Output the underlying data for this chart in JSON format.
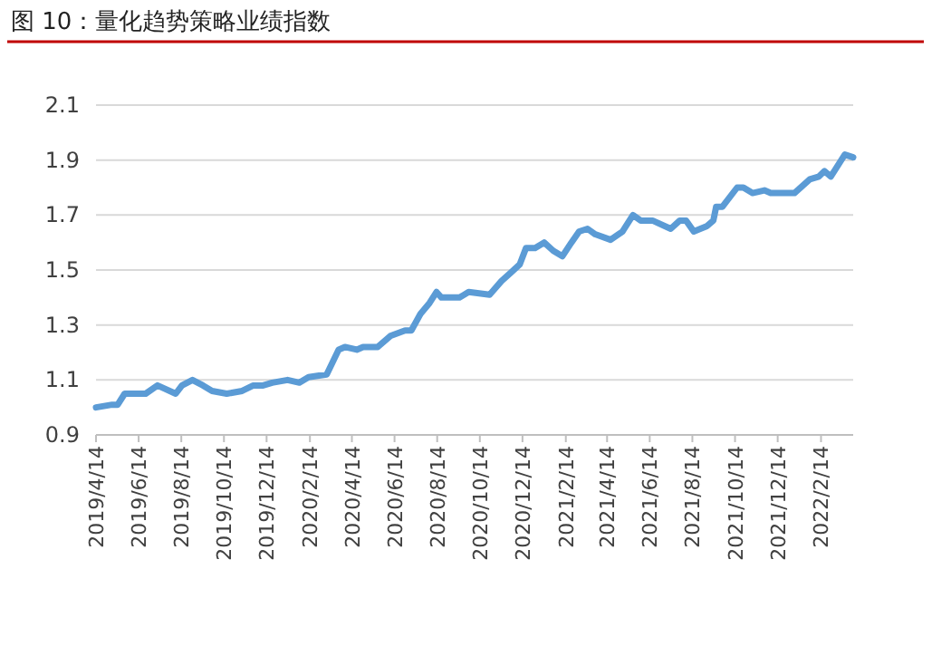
{
  "chart_data": {
    "type": "line",
    "title": "图 10：量化趋势策略业绩指数",
    "x": [
      "2019-04-14",
      "2019-05-07",
      "2019-05-15",
      "2019-05-25",
      "2019-06-24",
      "2019-07-11",
      "2019-08-06",
      "2019-08-15",
      "2019-08-30",
      "2019-09-14",
      "2019-09-27",
      "2019-10-18",
      "2019-11-09",
      "2019-11-25",
      "2019-12-09",
      "2019-12-22",
      "2020-01-13",
      "2020-01-30",
      "2020-02-12",
      "2020-03-09",
      "2020-03-26",
      "2020-04-04",
      "2020-04-21",
      "2020-04-30",
      "2020-05-21",
      "2020-06-08",
      "2020-06-29",
      "2020-07-08",
      "2020-07-21",
      "2020-08-03",
      "2020-08-13",
      "2020-08-20",
      "2020-09-15",
      "2020-09-28",
      "2020-10-28",
      "2020-11-14",
      "2020-11-27",
      "2020-12-10",
      "2020-12-19",
      "2021-01-01",
      "2021-01-14",
      "2021-01-27",
      "2021-02-09",
      "2021-02-22",
      "2021-03-05",
      "2021-03-17",
      "2021-03-28",
      "2021-04-19",
      "2021-05-06",
      "2021-05-21",
      "2021-06-01",
      "2021-06-18",
      "2021-07-14",
      "2021-07-27",
      "2021-08-05",
      "2021-08-16",
      "2021-09-04",
      "2021-09-13",
      "2021-09-17",
      "2021-09-26",
      "2021-10-17",
      "2021-10-26",
      "2021-11-08",
      "2021-11-25",
      "2021-12-04",
      "2021-12-21",
      "2022-01-07",
      "2022-01-29",
      "2022-02-11",
      "2022-02-19",
      "2022-02-28",
      "2022-03-20",
      "2022-04-01"
    ],
    "series": [
      {
        "color": "#5b9bd5",
        "values": [
          1.0,
          1.01,
          1.01,
          1.05,
          1.05,
          1.08,
          1.05,
          1.08,
          1.1,
          1.08,
          1.06,
          1.05,
          1.06,
          1.08,
          1.08,
          1.09,
          1.1,
          1.09,
          1.11,
          1.12,
          1.21,
          1.22,
          1.21,
          1.22,
          1.22,
          1.26,
          1.28,
          1.28,
          1.34,
          1.38,
          1.42,
          1.4,
          1.4,
          1.42,
          1.41,
          1.46,
          1.49,
          1.52,
          1.58,
          1.58,
          1.6,
          1.57,
          1.55,
          1.6,
          1.64,
          1.65,
          1.63,
          1.61,
          1.64,
          1.7,
          1.68,
          1.68,
          1.65,
          1.68,
          1.68,
          1.64,
          1.66,
          1.68,
          1.73,
          1.73,
          1.8,
          1.8,
          1.78,
          1.79,
          1.78,
          1.78,
          1.78,
          1.83,
          1.84,
          1.86,
          1.84,
          1.92,
          1.91
        ]
      }
    ],
    "xlim": [
      "2019-04-14",
      "2022-04-01"
    ],
    "xticks": [
      {
        "value": "2019-04-14",
        "label": "2019/4/14"
      },
      {
        "value": "2019-06-14",
        "label": "2019/6/14"
      },
      {
        "value": "2019-08-14",
        "label": "2019/8/14"
      },
      {
        "value": "2019-10-14",
        "label": "2019/10/14"
      },
      {
        "value": "2019-12-14",
        "label": "2019/12/14"
      },
      {
        "value": "2020-02-14",
        "label": "2020/2/14"
      },
      {
        "value": "2020-04-14",
        "label": "2020/4/14"
      },
      {
        "value": "2020-06-14",
        "label": "2020/6/14"
      },
      {
        "value": "2020-08-14",
        "label": "2020/8/14"
      },
      {
        "value": "2020-10-14",
        "label": "2020/10/14"
      },
      {
        "value": "2020-12-14",
        "label": "2020/12/14"
      },
      {
        "value": "2021-02-14",
        "label": "2021/2/14"
      },
      {
        "value": "2021-04-14",
        "label": "2021/4/14"
      },
      {
        "value": "2021-06-14",
        "label": "2021/6/14"
      },
      {
        "value": "2021-08-14",
        "label": "2021/8/14"
      },
      {
        "value": "2021-10-14",
        "label": "2021/10/14"
      },
      {
        "value": "2021-12-14",
        "label": "2021/12/14"
      },
      {
        "value": "2022-02-14",
        "label": "2022/2/14"
      }
    ],
    "ylim": [
      0.9,
      2.1
    ],
    "yticks": [
      0.9,
      1.1,
      1.3,
      1.5,
      1.7,
      1.9,
      2.1
    ],
    "grid": "y"
  }
}
